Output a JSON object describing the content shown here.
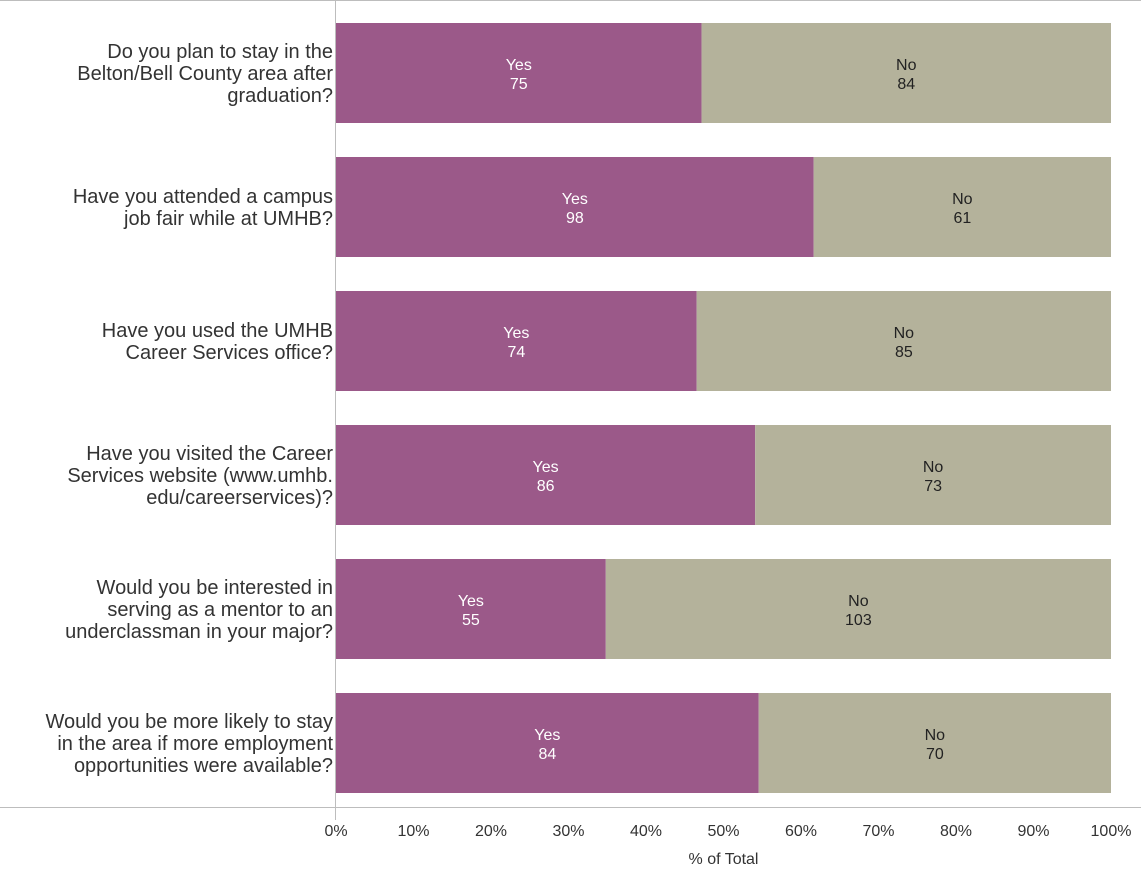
{
  "chart_data": {
    "type": "bar",
    "orientation": "horizontal",
    "stacked": "percent",
    "xlabel": "% of Total",
    "xlim": [
      0,
      100
    ],
    "x_ticks": [
      "0%",
      "10%",
      "20%",
      "30%",
      "40%",
      "50%",
      "60%",
      "70%",
      "80%",
      "90%",
      "100%"
    ],
    "categories": [
      [
        "Do you plan to stay in the",
        "Belton/Bell County area after",
        "graduation?"
      ],
      [
        "Have you attended a campus",
        "job fair while at UMHB?"
      ],
      [
        "Have you used the UMHB",
        "Career Services office?"
      ],
      [
        "Have you visited the Career",
        "Services website (www.umhb.",
        "edu/careerservices)?"
      ],
      [
        "Would you be interested in",
        "serving as a mentor to an",
        "underclassman in your major?"
      ],
      [
        "Would you be more likely to stay",
        "in the area if more employment",
        "opportunities were available?"
      ]
    ],
    "series": [
      {
        "name": "Yes",
        "color": "#9b5989",
        "values": [
          75,
          98,
          74,
          86,
          55,
          84
        ]
      },
      {
        "name": "No",
        "color": "#b4b29b",
        "values": [
          84,
          61,
          85,
          73,
          103,
          70
        ]
      }
    ],
    "grid": false,
    "legend": "none"
  }
}
